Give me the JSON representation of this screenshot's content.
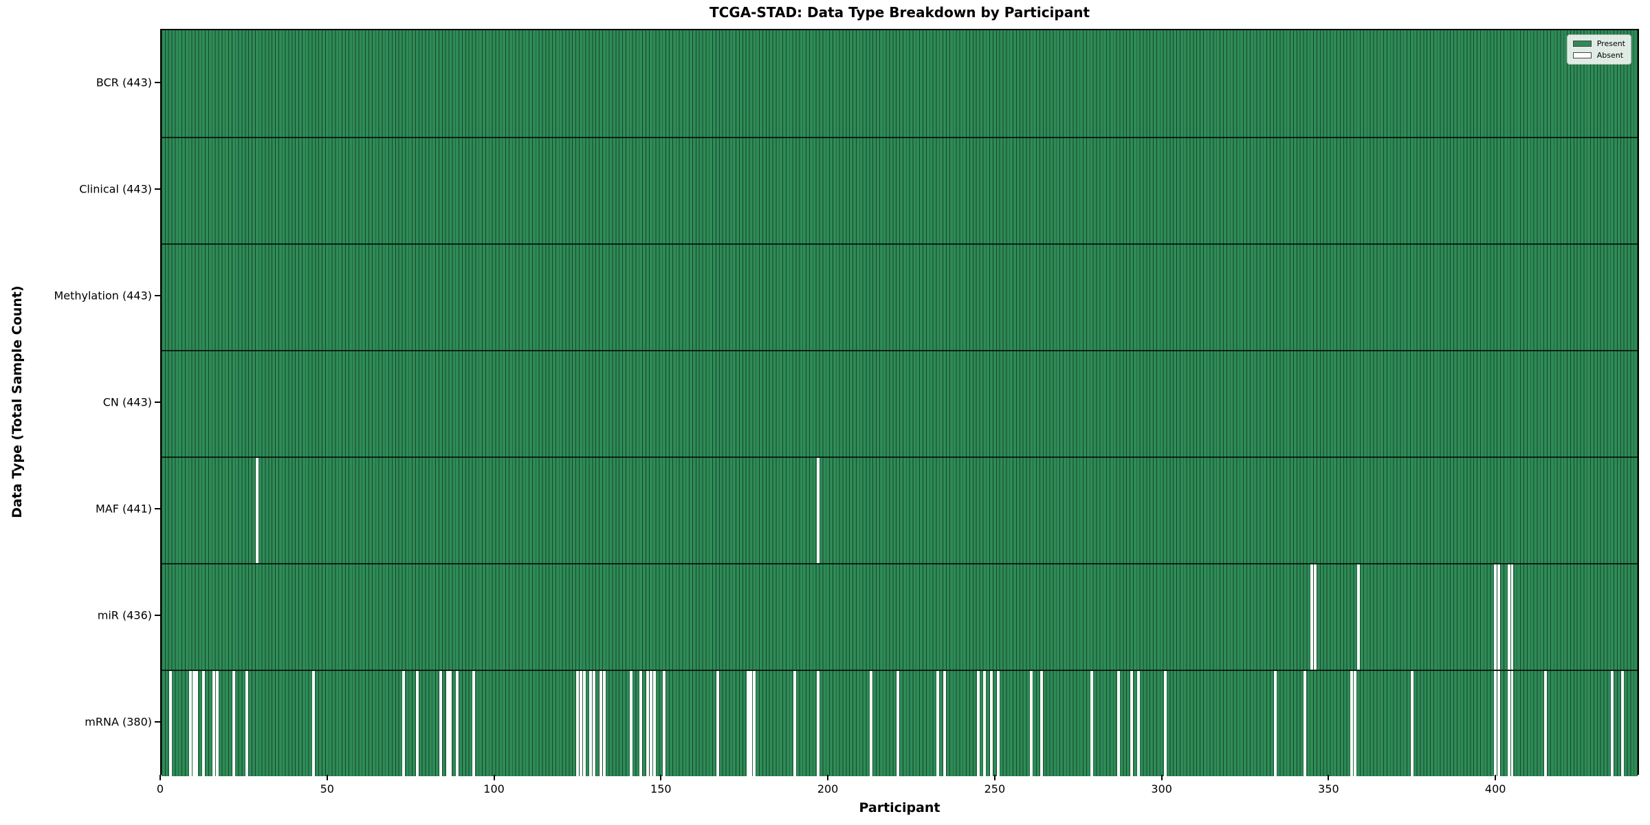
{
  "chart_data": {
    "type": "heatmap",
    "title": "TCGA-STAD: Data Type Breakdown by Participant",
    "xlabel": "Participant",
    "ylabel": "Data Type (Total Sample Count)",
    "x_ticks": [
      0,
      50,
      100,
      150,
      200,
      250,
      300,
      350,
      400
    ],
    "xlim": [
      0,
      443
    ],
    "n_participants": 443,
    "grid": false,
    "value_encoding": {
      "present": 1,
      "absent": 0
    },
    "colors": {
      "present_fill": "#2e8b57",
      "absent_fill": "#ffffff",
      "bar_edge": "rgba(0,0,0,0.5)",
      "row_boundary": "rgba(0,0,0,0.75)",
      "background": "#ffffff"
    },
    "legend": {
      "position": "upper right",
      "entries": [
        {
          "label": "Present",
          "color": "#2e8b57"
        },
        {
          "label": "Absent",
          "color": "#ffffff"
        }
      ]
    },
    "rows": [
      {
        "label": "BCR (443)",
        "data_type": "BCR",
        "present_count": 443,
        "absent_participants": []
      },
      {
        "label": "Clinical (443)",
        "data_type": "Clinical",
        "present_count": 443,
        "absent_participants": []
      },
      {
        "label": "Methylation (443)",
        "data_type": "Methylation",
        "present_count": 443,
        "absent_participants": []
      },
      {
        "label": "CN (443)",
        "data_type": "CN",
        "present_count": 443,
        "absent_participants": []
      },
      {
        "label": "MAF (441)",
        "data_type": "MAF",
        "present_count": 441,
        "absent_participants": [
          28,
          196
        ]
      },
      {
        "label": "miR (436)",
        "data_type": "miR",
        "present_count": 436,
        "absent_participants": [
          344,
          345,
          358,
          399,
          400,
          403,
          404
        ]
      },
      {
        "label": "mRNA (380)",
        "data_type": "mRNA",
        "present_count": 380,
        "absent_participants": [
          2,
          8,
          9,
          10,
          12,
          15,
          16,
          21,
          25,
          45,
          72,
          76,
          83,
          85,
          86,
          88,
          93,
          124,
          125,
          126,
          128,
          129,
          131,
          132,
          140,
          143,
          145,
          146,
          147,
          150,
          166,
          175,
          176,
          177,
          189,
          196,
          212,
          220,
          232,
          234,
          244,
          246,
          248,
          250,
          260,
          263,
          278,
          286,
          290,
          292,
          300,
          333,
          342,
          356,
          357,
          374,
          399,
          400,
          403,
          404,
          414,
          434,
          437
        ]
      }
    ]
  }
}
